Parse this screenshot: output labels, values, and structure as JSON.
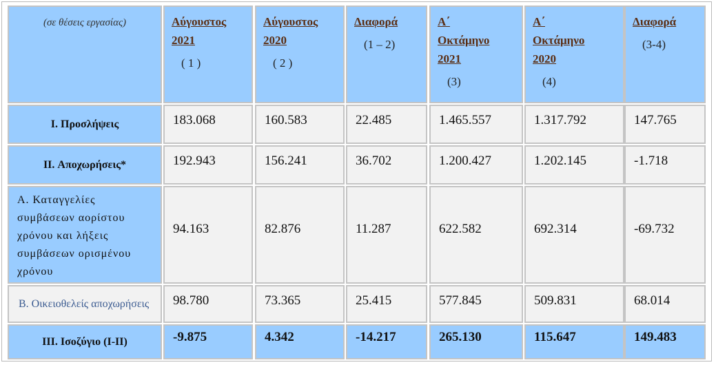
{
  "header": {
    "columns": [
      [
        "(σε θέσεις εργασίας)"
      ],
      [
        "Αύγουστος ",
        "2021",
        "( 1 )"
      ],
      [
        "Αύγουστος ",
        "2020",
        "( 2 )"
      ],
      [
        "Διαφορά",
        "(1 – 2)"
      ],
      [
        "Α΄",
        "Οκτάμηνο",
        "2021",
        "(3)"
      ],
      [
        "Α΄",
        "Οκτάμηνο",
        "2020",
        "(4)"
      ],
      [
        "Διαφορά",
        "(3-4)"
      ]
    ]
  },
  "table": {
    "rows": [
      [
        "I. Προσλήψεις",
        "183.068",
        "160.583",
        "22.485",
        "1.465.557",
        "1.317.792",
        "147.765"
      ],
      [
        "II. Αποχωρήσεις*",
        "192.943",
        "156.241",
        "36.702",
        "1.200.427",
        "1.202.145",
        "-1.718"
      ],
      [
        "Α. Καταγγελίες συμβάσεων αορίστου χρόνου  και λήξεις συμβάσεων ορισμένου χρόνου",
        "94.163",
        "82.876",
        "11.287",
        "622.582",
        "692.314",
        "-69.732"
      ],
      [
        "Β. Οικειοθελείς  αποχωρήσεις",
        "98.780",
        "73.365",
        "25.415",
        "577.845",
        "509.831",
        "68.014"
      ],
      [
        "III. Ισοζύγιο (I-II)",
        "-9.875",
        "4.342",
        "-14.217",
        "265.130",
        "115.647",
        "149.483"
      ]
    ]
  }
}
